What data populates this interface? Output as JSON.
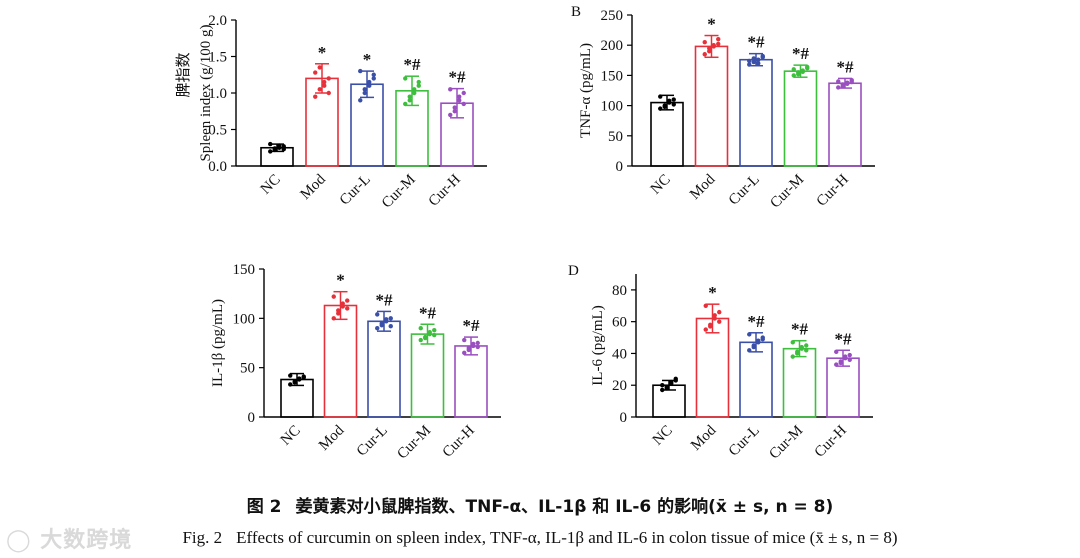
{
  "colors": {
    "NC": "#000000",
    "Mod": "#e8303a",
    "Cur-L": "#3a4fa8",
    "Cur-M": "#3dbf3d",
    "Cur-H": "#9a4fc0"
  },
  "chart_data": [
    {
      "type": "bar",
      "panel": "",
      "categories": [
        "NC",
        "Mod",
        "Cur-L",
        "Cur-M",
        "Cur-H"
      ],
      "values": [
        0.25,
        1.2,
        1.12,
        1.03,
        0.86
      ],
      "errors": [
        0.05,
        0.2,
        0.18,
        0.2,
        0.2
      ],
      "points": [
        [
          0.2,
          0.22,
          0.25,
          0.27,
          0.3,
          0.24,
          0.28,
          0.23
        ],
        [
          0.95,
          1.05,
          1.1,
          1.2,
          1.28,
          1.35,
          1.15,
          1.0
        ],
        [
          0.9,
          1.0,
          1.1,
          1.2,
          1.3,
          1.05,
          1.15,
          1.25
        ],
        [
          0.85,
          0.95,
          1.0,
          1.1,
          1.2,
          0.9,
          1.05,
          1.15
        ],
        [
          0.7,
          0.8,
          0.9,
          1.0,
          1.05,
          0.75,
          0.95,
          0.85
        ]
      ],
      "annotations": [
        "",
        "*",
        "*",
        "*#",
        "*#"
      ],
      "ylabel_cn": "脾指数",
      "ylabel": "Spleen index (g/100 g)",
      "ylim": [
        0,
        2
      ],
      "yticks": [
        0,
        0.5,
        1.0,
        1.5,
        2.0
      ],
      "ytick_labels": [
        "0.0",
        "0.5",
        "1.0",
        "1.5",
        "2.0"
      ]
    },
    {
      "type": "bar",
      "panel": "B",
      "categories": [
        "NC",
        "Mod",
        "Cur-L",
        "Cur-M",
        "Cur-H"
      ],
      "values": [
        105,
        198,
        176,
        157,
        137
      ],
      "errors": [
        12,
        18,
        10,
        10,
        8
      ],
      "points": [
        [
          95,
          100,
          105,
          110,
          115,
          98,
          108,
          102
        ],
        [
          185,
          195,
          200,
          210,
          205,
          190,
          198,
          202
        ],
        [
          168,
          172,
          176,
          180,
          174,
          178,
          170,
          182
        ],
        [
          150,
          155,
          158,
          162,
          160,
          152,
          156,
          164
        ],
        [
          130,
          135,
          138,
          142,
          140,
          132,
          136,
          139
        ]
      ],
      "annotations": [
        "",
        "*",
        "*#",
        "*#",
        "*#"
      ],
      "ylabel": "TNF-α (pg/mL)",
      "ylim": [
        0,
        250
      ],
      "yticks": [
        0,
        50,
        100,
        150,
        200,
        250
      ],
      "ytick_labels": [
        "0",
        "50",
        "100",
        "150",
        "200",
        "250"
      ]
    },
    {
      "type": "bar",
      "panel": "",
      "categories": [
        "NC",
        "Mod",
        "Cur-L",
        "Cur-M",
        "Cur-H"
      ],
      "values": [
        38,
        113,
        97,
        84,
        72
      ],
      "errors": [
        6,
        14,
        10,
        10,
        9
      ],
      "points": [
        [
          33,
          35,
          38,
          40,
          42,
          36,
          39,
          41
        ],
        [
          100,
          105,
          112,
          118,
          122,
          108,
          115,
          110
        ],
        [
          90,
          93,
          97,
          100,
          104,
          95,
          99,
          92
        ],
        [
          78,
          81,
          84,
          88,
          90,
          80,
          86,
          83
        ],
        [
          65,
          68,
          72,
          75,
          78,
          70,
          74,
          71
        ]
      ],
      "annotations": [
        "",
        "*",
        "*#",
        "*#",
        "*#"
      ],
      "ylabel": "IL-1β (pg/mL)",
      "ylim": [
        0,
        150
      ],
      "yticks": [
        0,
        50,
        100,
        150
      ],
      "ytick_labels": [
        "0",
        "50",
        "100",
        "150"
      ]
    },
    {
      "type": "bar",
      "panel": "D",
      "categories": [
        "NC",
        "Mod",
        "Cur-L",
        "Cur-M",
        "Cur-H"
      ],
      "values": [
        20,
        62,
        47,
        43,
        37
      ],
      "errors": [
        3,
        9,
        6,
        5,
        5
      ],
      "points": [
        [
          17,
          19,
          21,
          23,
          20,
          18,
          22,
          24
        ],
        [
          55,
          58,
          62,
          66,
          70,
          57,
          64,
          60
        ],
        [
          42,
          44,
          47,
          50,
          52,
          45,
          48,
          49
        ],
        [
          38,
          40,
          43,
          45,
          47,
          41,
          44,
          42
        ],
        [
          33,
          35,
          37,
          39,
          41,
          34,
          38,
          36
        ]
      ],
      "annotations": [
        "",
        "*",
        "*#",
        "*#",
        "*#"
      ],
      "ylabel": "IL-6 (pg/mL)",
      "ylim": [
        0,
        90
      ],
      "yticks": [
        0,
        20,
        40,
        60,
        80
      ],
      "ytick_labels": [
        "0",
        "20",
        "40",
        "60",
        "80"
      ]
    }
  ],
  "caption_cn": {
    "label": "图 2",
    "text": "姜黄素对小鼠脾指数、TNF-α、IL-1β 和 IL-6 的影响(x̄ ± s, n = 8)"
  },
  "caption_en": {
    "label": "Fig. 2",
    "text": "Effects of curcumin on spleen index, TNF-α, IL-1β and IL-6 in colon tissue of mice (x̄ ± s, n = 8)"
  },
  "watermark": "大数跨境"
}
